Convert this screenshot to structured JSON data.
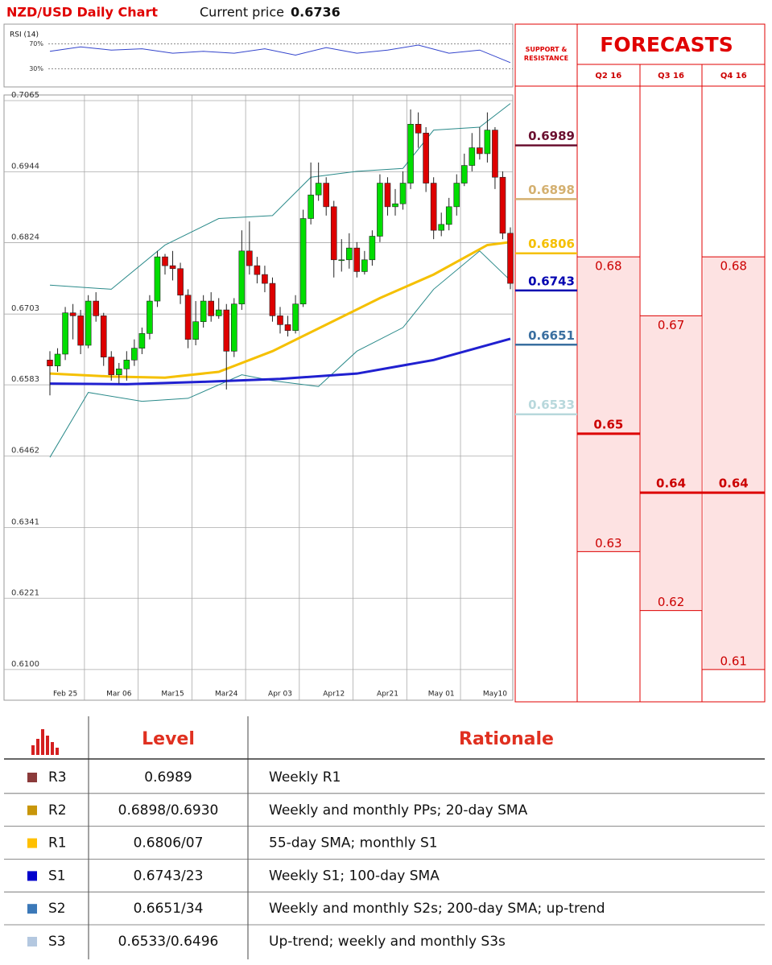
{
  "header": {
    "title": "NZD/USD Daily Chart",
    "price_label": "Current price",
    "price": 0.6736
  },
  "chart_data": {
    "type": "candlestick",
    "categories": [
      null,
      null,
      "Feb 25",
      null,
      null,
      null,
      null,
      null,
      null,
      "Mar 06",
      null,
      null,
      null,
      null,
      null,
      null,
      "Mar15",
      null,
      null,
      null,
      null,
      null,
      null,
      "Mar24",
      null,
      null,
      null,
      null,
      null,
      null,
      "Apr 03",
      null,
      null,
      null,
      null,
      null,
      null,
      "Apr12",
      null,
      null,
      null,
      null,
      null,
      null,
      "Apr21",
      null,
      null,
      null,
      null,
      null,
      null,
      "May 01",
      null,
      null,
      null,
      null,
      null,
      null,
      "May10",
      null,
      null
    ],
    "open": [
      0.6625,
      0.6615,
      0.6635,
      0.6705,
      0.67,
      0.665,
      0.6725,
      0.67,
      0.663,
      0.66,
      0.661,
      0.6625,
      0.6645,
      0.667,
      0.6725,
      0.68,
      0.6785,
      0.678,
      0.6735,
      0.666,
      0.669,
      0.6725,
      0.67,
      0.671,
      0.664,
      0.672,
      0.681,
      0.6785,
      0.677,
      0.6755,
      0.67,
      0.6685,
      0.6675,
      0.672,
      0.6865,
      0.6905,
      0.6925,
      0.6885,
      0.6795,
      0.6795,
      0.6815,
      0.6775,
      0.6795,
      0.6835,
      0.6925,
      0.6885,
      0.689,
      0.6925,
      0.7025,
      0.701,
      0.6925,
      0.6845,
      0.6855,
      0.6885,
      0.6925,
      0.6955,
      0.6985,
      0.6975,
      0.7015,
      0.6935,
      0.684
    ],
    "high": [
      0.664,
      0.6645,
      0.6715,
      0.672,
      0.671,
      0.6735,
      0.674,
      0.6705,
      0.664,
      0.662,
      0.664,
      0.666,
      0.668,
      0.6735,
      0.681,
      0.6805,
      0.681,
      0.679,
      0.6745,
      0.6725,
      0.6735,
      0.674,
      0.673,
      0.672,
      0.673,
      0.6845,
      0.686,
      0.68,
      0.6785,
      0.6765,
      0.6715,
      0.67,
      0.6735,
      0.688,
      0.696,
      0.696,
      0.6935,
      0.6895,
      0.683,
      0.684,
      0.6825,
      0.681,
      0.6845,
      0.694,
      0.6935,
      0.6915,
      0.6945,
      0.705,
      0.7045,
      0.702,
      0.6935,
      0.6875,
      0.69,
      0.694,
      0.6975,
      0.701,
      0.702,
      0.7045,
      0.702,
      0.6945,
      0.685
    ],
    "low": [
      0.6565,
      0.6605,
      0.6625,
      0.666,
      0.6635,
      0.6645,
      0.669,
      0.6615,
      0.659,
      0.6585,
      0.659,
      0.6615,
      0.6635,
      0.666,
      0.6715,
      0.677,
      0.676,
      0.672,
      0.6645,
      0.665,
      0.668,
      0.669,
      0.6695,
      0.6575,
      0.663,
      0.671,
      0.677,
      0.6755,
      0.674,
      0.669,
      0.667,
      0.6665,
      0.667,
      0.6715,
      0.6855,
      0.6895,
      0.687,
      0.6765,
      0.6775,
      0.678,
      0.6765,
      0.677,
      0.6785,
      0.6825,
      0.687,
      0.687,
      0.688,
      0.6915,
      0.6985,
      0.691,
      0.683,
      0.6835,
      0.6845,
      0.687,
      0.692,
      0.6945,
      0.6965,
      0.696,
      0.6915,
      0.683,
      0.6745
    ],
    "close": [
      0.6615,
      0.6635,
      0.6705,
      0.67,
      0.665,
      0.6725,
      0.67,
      0.663,
      0.66,
      0.661,
      0.6625,
      0.6645,
      0.667,
      0.6725,
      0.68,
      0.6785,
      0.678,
      0.6735,
      0.666,
      0.669,
      0.6725,
      0.67,
      0.671,
      0.664,
      0.672,
      0.681,
      0.6785,
      0.677,
      0.6755,
      0.67,
      0.6685,
      0.6675,
      0.672,
      0.6865,
      0.6905,
      0.6925,
      0.6885,
      0.6795,
      0.6795,
      0.6815,
      0.6775,
      0.6795,
      0.6835,
      0.6925,
      0.6885,
      0.689,
      0.6925,
      0.7025,
      0.701,
      0.6925,
      0.6845,
      0.6855,
      0.6885,
      0.6925,
      0.6955,
      0.6985,
      0.6975,
      0.7015,
      0.6935,
      0.684,
      0.6755
    ],
    "up_color": "#00dd00",
    "down_color": "#dd0000",
    "series": [
      {
        "color": "#2a8a8a",
        "x": [
          0,
          8,
          15,
          22,
          29,
          34,
          40,
          46,
          50,
          56,
          60
        ],
        "values": [
          0.6752,
          0.6745,
          0.682,
          0.6865,
          0.687,
          0.6935,
          0.6945,
          0.695,
          0.7015,
          0.702,
          0.706
        ]
      },
      {
        "color": "#2a8a8a",
        "x": [
          0,
          5,
          12,
          18,
          25,
          29,
          35,
          40,
          46,
          50,
          56,
          60
        ],
        "values": [
          0.646,
          0.657,
          0.6555,
          0.656,
          0.66,
          0.659,
          0.658,
          0.664,
          0.668,
          0.6745,
          0.681,
          0.676
        ]
      },
      {
        "color": "#f5c000",
        "x": [
          0,
          8,
          15,
          22,
          29,
          36,
          43,
          50,
          57,
          60
        ],
        "values": [
          0.6602,
          0.6597,
          0.6595,
          0.6605,
          0.664,
          0.6685,
          0.673,
          0.677,
          0.682,
          0.6825
        ]
      },
      {
        "color": "#2020d0",
        "x": [
          0,
          10,
          20,
          30,
          40,
          50,
          60
        ],
        "values": [
          0.6585,
          0.6584,
          0.6588,
          0.6593,
          0.6602,
          0.6625,
          0.6661
        ]
      }
    ],
    "ylim": [
      0.6048,
      0.7065
    ],
    "yticks": [
      0.7065,
      0.6944,
      0.6824,
      0.6703,
      0.6583,
      0.6462,
      0.6341,
      0.6221,
      {
        "value": 0.61,
        "label": "0.6100"
      }
    ],
    "grid": true,
    "rsi": {
      "title": "RSI (14)",
      "color": "#3344cc",
      "x": [
        0,
        4,
        8,
        12,
        16,
        20,
        24,
        28,
        32,
        36,
        40,
        44,
        48,
        52,
        56,
        60
      ],
      "values": [
        58,
        65,
        60,
        62,
        55,
        58,
        55,
        62,
        52,
        64,
        55,
        60,
        68,
        55,
        60,
        40
      ],
      "ylim": [
        0,
        100
      ],
      "yticks": [
        {
          "value": 70,
          "label": "70%"
        },
        {
          "value": 30,
          "label": "30%"
        }
      ]
    }
  },
  "support_resistance": {
    "title": "SUPPORT & RESISTANCE",
    "levels": [
      {
        "value": 0.6989,
        "color": "#6b1030"
      },
      {
        "value": 0.6898,
        "color": "#d4b070"
      },
      {
        "value": 0.6806,
        "color": "#f5c000"
      },
      {
        "value": 0.6743,
        "color": "#0000b0"
      },
      {
        "value": 0.6651,
        "color": "#3a6fa0"
      },
      {
        "value": 0.6533,
        "color": "#b8d8dc"
      }
    ]
  },
  "forecasts": {
    "title": "FORECASTS",
    "quarters": [
      {
        "label": "Q2 16",
        "high": 0.68,
        "median": 0.65,
        "low": 0.63
      },
      {
        "label": "Q3 16",
        "high": 0.67,
        "median": 0.64,
        "low": 0.62
      },
      {
        "label": "Q4 16",
        "high": 0.68,
        "median": 0.64,
        "low": 0.61
      }
    ]
  },
  "table": {
    "headers": [
      "Level",
      "Rationale"
    ],
    "rows": [
      {
        "name": "R3",
        "color": "#8b3a3a",
        "level": "0.6989",
        "rationale": "Weekly R1"
      },
      {
        "name": "R2",
        "color": "#c8960a",
        "level": "0.6898/0.6930",
        "rationale": "Weekly and monthly PPs; 20-day SMA"
      },
      {
        "name": "R1",
        "color": "#ffc000",
        "level": "0.6806/07",
        "rationale": "55-day SMA; monthly S1"
      },
      {
        "name": "S1",
        "color": "#0000cc",
        "level": "0.6743/23",
        "rationale": "Weekly S1; 100-day SMA"
      },
      {
        "name": "S2",
        "color": "#3b78b8",
        "level": "0.6651/34",
        "rationale": "Weekly and monthly S2s; 200-day SMA; up-trend"
      },
      {
        "name": "S3",
        "color": "#b4c8e0",
        "level": "0.6533/0.6496",
        "rationale": "Up-trend; weekly and monthly S3s"
      }
    ]
  }
}
